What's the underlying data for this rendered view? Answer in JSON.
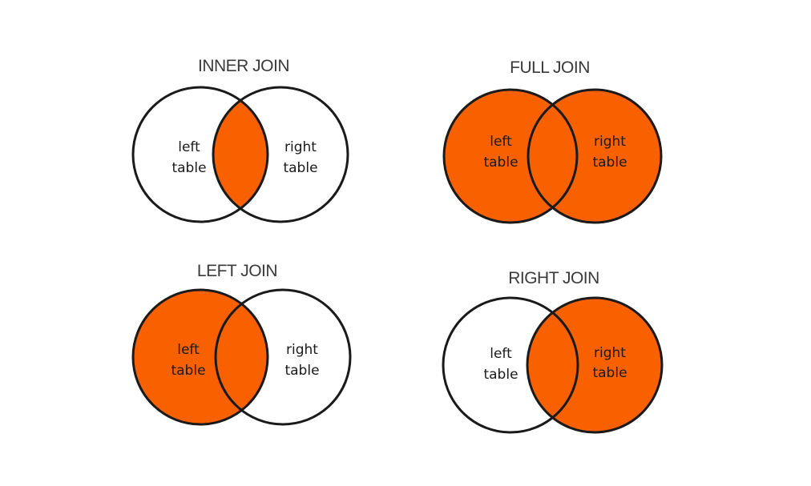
{
  "fill_color": "#f96000",
  "outline_color": "#1a1a1a",
  "diagrams": [
    {
      "id": "inner",
      "title": "INNER JOIN",
      "left_text": [
        "left",
        "table"
      ],
      "right_text": [
        "right",
        "table"
      ],
      "shade": "intersection"
    },
    {
      "id": "full",
      "title": "FULL JOIN",
      "left_text": [
        "left",
        "table"
      ],
      "right_text": [
        "right",
        "table"
      ],
      "shade": "union"
    },
    {
      "id": "left",
      "title": "LEFT JOIN",
      "left_text": [
        "left",
        "table"
      ],
      "right_text": [
        "right",
        "table"
      ],
      "shade": "left"
    },
    {
      "id": "right",
      "title": "RIGHT JOIN",
      "left_text": [
        "left",
        "table"
      ],
      "right_text": [
        "right",
        "table"
      ],
      "shade": "right"
    }
  ]
}
